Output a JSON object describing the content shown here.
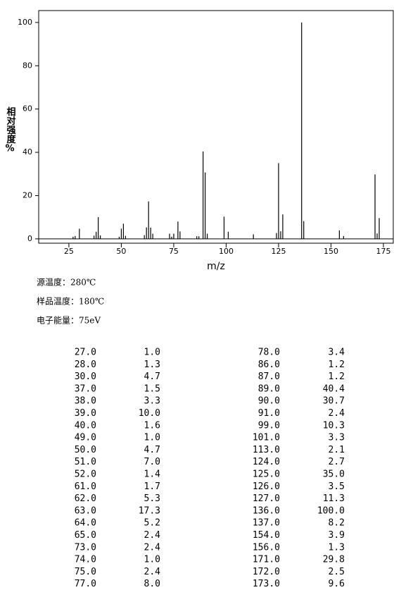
{
  "chart_data": {
    "type": "bar",
    "x": [
      27,
      28,
      30,
      37,
      38,
      39,
      40,
      49,
      50,
      51,
      52,
      61,
      62,
      63,
      64,
      65,
      73,
      74,
      75,
      77,
      78,
      86,
      87,
      89,
      90,
      91,
      99,
      101,
      113,
      124,
      125,
      126,
      127,
      136,
      137,
      154,
      156,
      171,
      172,
      173
    ],
    "values": [
      1.0,
      1.3,
      4.7,
      1.5,
      3.3,
      10.0,
      1.6,
      1.0,
      4.7,
      7.0,
      1.4,
      1.7,
      5.3,
      17.3,
      5.2,
      2.4,
      2.4,
      1.0,
      2.4,
      8.0,
      3.4,
      1.2,
      1.2,
      40.4,
      30.7,
      2.4,
      10.3,
      3.3,
      2.1,
      2.7,
      35.0,
      3.5,
      11.3,
      100.0,
      8.2,
      3.9,
      1.3,
      29.8,
      2.5,
      9.6
    ],
    "color": "#000000",
    "xlabel": "m/z",
    "ylabel": "相对强度%",
    "xlim": [
      10.6,
      179.7
    ],
    "ylim": [
      -2,
      105.5
    ],
    "xticks": [
      25,
      50,
      75,
      100,
      125,
      150,
      175
    ],
    "yticks": [
      0,
      20,
      40,
      60,
      80,
      100
    ]
  },
  "info": [
    "源温度：280℃",
    "样品温度：180℃",
    "电子能量：75eV"
  ],
  "table": {
    "rows": [
      [
        "27.0",
        "1.0",
        "78.0",
        "3.4"
      ],
      [
        "28.0",
        "1.3",
        "86.0",
        "1.2"
      ],
      [
        "30.0",
        "4.7",
        "87.0",
        "1.2"
      ],
      [
        "37.0",
        "1.5",
        "89.0",
        "40.4"
      ],
      [
        "38.0",
        "3.3",
        "90.0",
        "30.7"
      ],
      [
        "39.0",
        "10.0",
        "91.0",
        "2.4"
      ],
      [
        "40.0",
        "1.6",
        "99.0",
        "10.3"
      ],
      [
        "49.0",
        "1.0",
        "101.0",
        "3.3"
      ],
      [
        "50.0",
        "4.7",
        "113.0",
        "2.1"
      ],
      [
        "51.0",
        "7.0",
        "124.0",
        "2.7"
      ],
      [
        "52.0",
        "1.4",
        "125.0",
        "35.0"
      ],
      [
        "61.0",
        "1.7",
        "126.0",
        "3.5"
      ],
      [
        "62.0",
        "5.3",
        "127.0",
        "11.3"
      ],
      [
        "63.0",
        "17.3",
        "136.0",
        "100.0"
      ],
      [
        "64.0",
        "5.2",
        "137.0",
        "8.2"
      ],
      [
        "65.0",
        "2.4",
        "154.0",
        "3.9"
      ],
      [
        "73.0",
        "2.4",
        "156.0",
        "1.3"
      ],
      [
        "74.0",
        "1.0",
        "171.0",
        "29.8"
      ],
      [
        "75.0",
        "2.4",
        "172.0",
        "2.5"
      ],
      [
        "77.0",
        "8.0",
        "173.0",
        "9.6"
      ]
    ]
  }
}
